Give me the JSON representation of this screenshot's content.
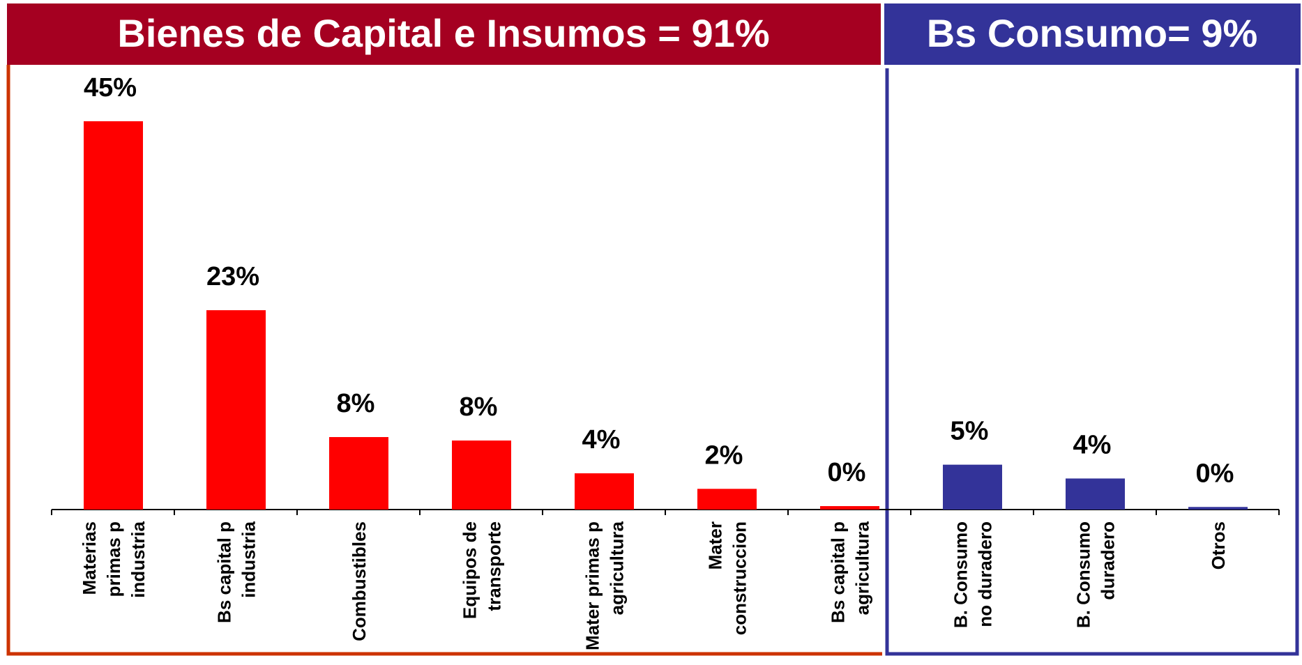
{
  "chart_data": {
    "type": "bar",
    "group_titles": [
      "Bienes de Capital e Insumos = 91%",
      "Bs Consumo= 9%"
    ],
    "categories": [
      [
        "Materias",
        "primas p",
        "industria"
      ],
      [
        "Bs capital p",
        "industria"
      ],
      [
        "Combustibles"
      ],
      [
        "Equipos de",
        "transporte"
      ],
      [
        "Mater primas p",
        "agricultura"
      ],
      [
        "Mater",
        "construccion"
      ],
      [
        "Bs capital p",
        "agricultura"
      ],
      [
        "B. Consumo",
        "no duradero"
      ],
      [
        "B. Consumo",
        "duradero"
      ],
      [
        "Otros"
      ]
    ],
    "values": [
      45,
      23.1,
      8.4,
      8.0,
      4.2,
      2.4,
      0.4,
      5.2,
      3.6,
      0.3
    ],
    "value_labels": [
      "45%",
      "23%",
      "8%",
      "8%",
      "4%",
      "2%",
      "0%",
      "5%",
      "4%",
      "0%"
    ],
    "colors": [
      "#ff0000",
      "#ff0000",
      "#ff0000",
      "#ff0000",
      "#ff0000",
      "#ff0000",
      "#ff0000",
      "#333399",
      "#333399",
      "#333399"
    ]
  }
}
